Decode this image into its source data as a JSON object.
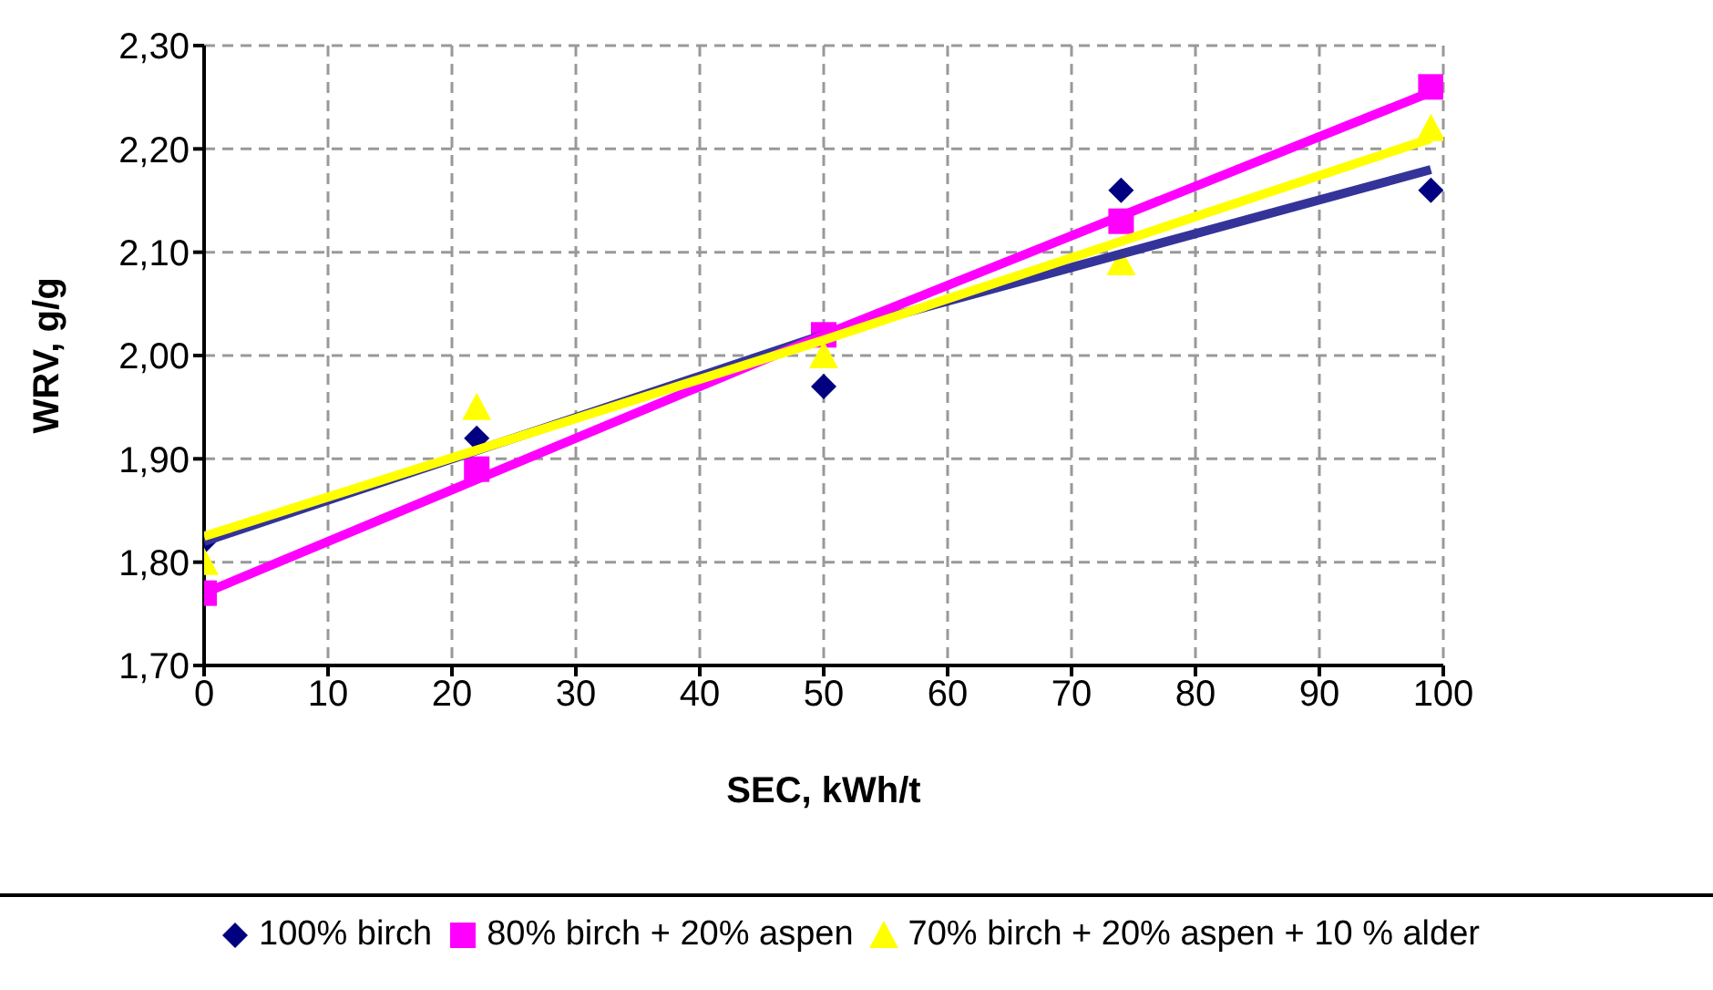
{
  "chart_data": {
    "type": "scatter",
    "xlabel": "SEC, kWh/t",
    "ylabel": "WRV, g/g",
    "xlim": [
      0,
      100
    ],
    "xticks": [
      0,
      10,
      20,
      30,
      40,
      50,
      60,
      70,
      80,
      90,
      100
    ],
    "ylim": [
      1.7,
      2.3
    ],
    "yticks": [
      {
        "value": 1.7,
        "label": "1,70"
      },
      {
        "value": 1.8,
        "label": "1,80"
      },
      {
        "value": 1.9,
        "label": "1,90"
      },
      {
        "value": 2.0,
        "label": "2,00"
      },
      {
        "value": 2.1,
        "label": "2,10"
      },
      {
        "value": 2.2,
        "label": "2,20"
      },
      {
        "value": 2.3,
        "label": "2,30"
      }
    ],
    "grid": true,
    "legend": "bottom",
    "series": [
      {
        "name": "100% birch",
        "color": "#000080",
        "marker": "diamond",
        "x": [
          0,
          22,
          50,
          74,
          99
        ],
        "values": [
          1.82,
          1.92,
          1.97,
          2.16,
          2.16
        ]
      },
      {
        "name": "80% birch + 20% aspen",
        "color": "#ff00ff",
        "marker": "square",
        "x": [
          0,
          22,
          50,
          74,
          99
        ],
        "values": [
          1.77,
          1.89,
          2.02,
          2.13,
          2.26
        ]
      },
      {
        "name": "70% birch + 20% aspen + 10 % alder",
        "color": "#ffff00",
        "marker": "triangle",
        "x": [
          0,
          22,
          50,
          74,
          99
        ],
        "values": [
          1.8,
          1.95,
          2.0,
          2.09,
          2.22
        ]
      },
      {
        "type": "line",
        "color": "#333399",
        "marker": "none",
        "x": [
          0,
          50,
          99
        ],
        "values": [
          1.82,
          2.02,
          2.18
        ]
      },
      {
        "type": "line",
        "color": "#ff00ff",
        "marker": "none",
        "x": [
          0,
          50,
          99
        ],
        "values": [
          1.77,
          2.02,
          2.255
        ]
      },
      {
        "type": "line",
        "color": "#ffff00",
        "marker": "none",
        "x": [
          0,
          50,
          99
        ],
        "values": [
          1.825,
          2.015,
          2.21
        ]
      }
    ]
  }
}
